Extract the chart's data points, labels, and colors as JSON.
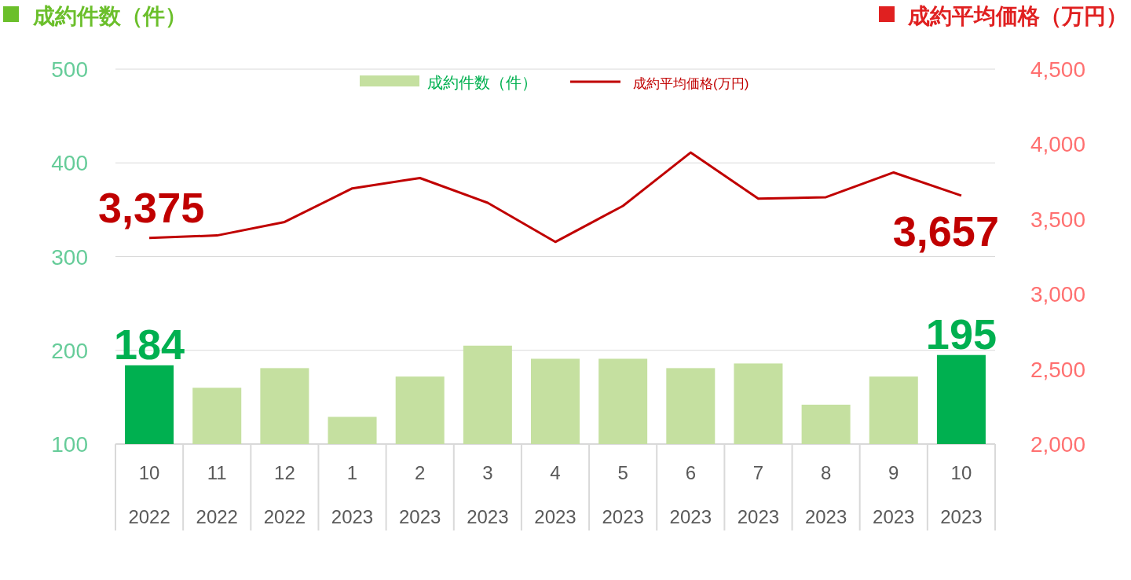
{
  "chart_data": {
    "type": "bar",
    "ylabel": "成約件数（件）",
    "y2label": "成約平均価格（万円）",
    "categories": [
      "10\n2022",
      "11\n2022",
      "12\n2022",
      "1\n2023",
      "2\n2023",
      "3\n2023",
      "4\n2023",
      "5\n2023",
      "6\n2023",
      "7\n2023",
      "8\n2023",
      "9\n2023",
      "10\n2023"
    ],
    "series": [
      {
        "name": "成約件数（件）",
        "color": "#c5e0a0",
        "colors": [
          "#00b050",
          "#c5e0a0",
          "#c5e0a0",
          "#c5e0a0",
          "#c5e0a0",
          "#c5e0a0",
          "#c5e0a0",
          "#c5e0a0",
          "#c5e0a0",
          "#c5e0a0",
          "#c5e0a0",
          "#c5e0a0",
          "#00b050"
        ],
        "values": [
          184,
          160,
          181,
          129,
          172,
          205,
          191,
          191,
          181,
          186,
          142,
          172,
          195
        ],
        "value_labels": [
          "184",
          null,
          null,
          null,
          null,
          null,
          null,
          null,
          null,
          null,
          null,
          null,
          "195"
        ]
      },
      {
        "name": "成約平均価格(万円)",
        "type": "line",
        "axis": "y2",
        "color": "#c00000",
        "values": [
          3375,
          3391,
          3481,
          3705,
          3774,
          3609,
          3348,
          3588,
          3944,
          3636,
          3646,
          3811,
          3657
        ],
        "value_labels": [
          "3,375",
          null,
          null,
          null,
          null,
          null,
          null,
          null,
          null,
          null,
          null,
          null,
          "3,657"
        ]
      }
    ],
    "ylim": [
      100,
      500
    ],
    "yticks": [
      100,
      200,
      300,
      400,
      500
    ],
    "y2lim": [
      2000,
      4500
    ],
    "y2ticks": [
      {
        "value": 2000,
        "label": "2,000"
      },
      {
        "value": 2500,
        "label": "2,500"
      },
      {
        "value": 3000,
        "label": "3,000"
      },
      {
        "value": 3500,
        "label": "3,500"
      },
      {
        "value": 4000,
        "label": "4,000"
      },
      {
        "value": 4500,
        "label": "4,500"
      }
    ],
    "grid": "y",
    "legend": "top",
    "marker": "none",
    "line_style": "solid"
  }
}
